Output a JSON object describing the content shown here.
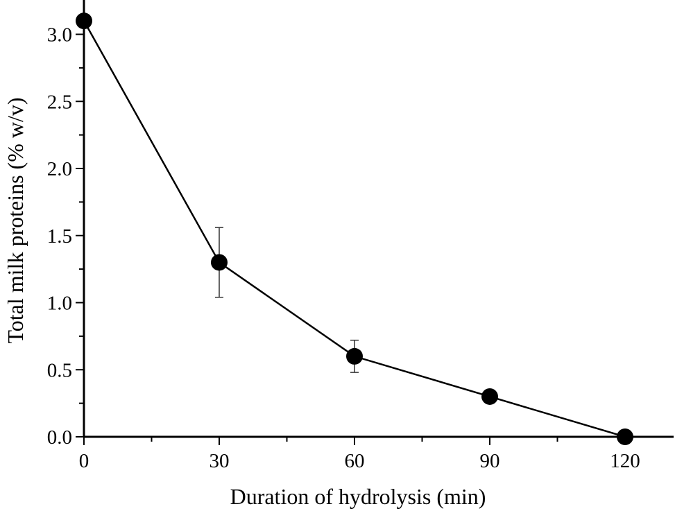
{
  "chart_data": {
    "type": "line",
    "xlabel": "Duration of hydrolysis (min)",
    "ylabel": "Total milk proteins (% w/v)",
    "xlim": [
      0,
      130
    ],
    "ylim": [
      0,
      3.25
    ],
    "x_ticks": [
      0,
      30,
      60,
      90,
      120
    ],
    "x_tick_labels": [
      "0",
      "30",
      "60",
      "90",
      "120"
    ],
    "x_minor_ticks": [
      15,
      45,
      75,
      105
    ],
    "y_ticks": [
      0,
      0.5,
      1.0,
      1.5,
      2.0,
      2.5,
      3.0
    ],
    "y_tick_labels": [
      "0.0",
      "0.5",
      "1.0",
      "1.5",
      "2.0",
      "2.5",
      "3.0"
    ],
    "y_minor_ticks": [
      0.25,
      0.75,
      1.25,
      1.75,
      2.25,
      2.75
    ],
    "grid": false,
    "legend": "none",
    "series": [
      {
        "x": [
          0,
          30,
          60,
          90,
          120
        ],
        "values": [
          3.1,
          1.3,
          0.6,
          0.3,
          0.0
        ],
        "error": [
          0.05,
          0.26,
          0.12,
          0.03,
          0.01
        ],
        "color": "#000000",
        "marker": "filled-circle"
      }
    ]
  }
}
